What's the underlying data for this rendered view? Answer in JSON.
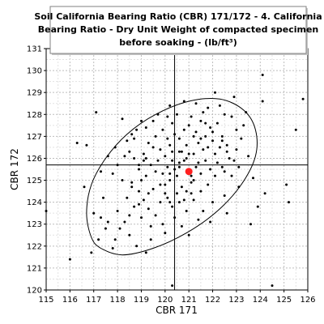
{
  "chart_data": {
    "type": "scatter",
    "title_lines": [
      "Soil California Bearing Ratio (CBR) 171/172 - 4. California",
      "Bearing Ratio - Dry Unit Weight of compacted specimen",
      "before soaking - (lb/ft³)"
    ],
    "xlabel": "CBR 171",
    "ylabel": "CBR 172",
    "xlim": [
      115,
      126
    ],
    "ylim": [
      120,
      131
    ],
    "x_ticks": [
      115,
      116,
      117,
      118,
      119,
      120,
      121,
      122,
      123,
      124,
      125,
      126
    ],
    "y_ticks": [
      120,
      121,
      122,
      123,
      124,
      125,
      126,
      127,
      128,
      129,
      130,
      131
    ],
    "grid": true,
    "reference_lines": {
      "x": 120.4,
      "y": 125.7
    },
    "highlight_point": {
      "x": 121.0,
      "y": 125.4,
      "color": "#ff2020"
    },
    "ellipse": {
      "comment_units": "data units",
      "center": [
        120.5,
        125.3
      ],
      "semi_major_x_extent": 4.6,
      "outline_points": [
        [
          116.9,
          122.4
        ],
        [
          117.3,
          121.9
        ],
        [
          118.2,
          121.6
        ],
        [
          119.5,
          121.9
        ],
        [
          120.9,
          122.6
        ],
        [
          122.2,
          123.6
        ],
        [
          123.2,
          124.8
        ],
        [
          123.8,
          126.1
        ],
        [
          123.8,
          127.3
        ],
        [
          123.3,
          128.2
        ],
        [
          122.3,
          128.7
        ],
        [
          121.0,
          128.6
        ],
        [
          119.6,
          128.0
        ],
        [
          118.4,
          127.1
        ],
        [
          117.5,
          126.0
        ],
        [
          116.9,
          124.8
        ],
        [
          116.7,
          123.5
        ]
      ]
    },
    "points": [
      [
        115.0,
        123.6
      ],
      [
        116.3,
        126.7
      ],
      [
        116.7,
        126.6
      ],
      [
        117.1,
        128.1
      ],
      [
        117.3,
        125.4
      ],
      [
        117.4,
        124.2
      ],
      [
        116.6,
        124.7
      ],
      [
        117.0,
        123.5
      ],
      [
        117.3,
        123.3
      ],
      [
        117.5,
        122.8
      ],
      [
        117.6,
        123.1
      ],
      [
        117.2,
        122.3
      ],
      [
        116.9,
        121.7
      ],
      [
        117.9,
        122.3
      ],
      [
        118.1,
        122.8
      ],
      [
        118.3,
        123.1
      ],
      [
        118.0,
        123.6
      ],
      [
        118.4,
        124.2
      ],
      [
        118.6,
        124.7
      ],
      [
        118.2,
        125.0
      ],
      [
        117.8,
        125.3
      ],
      [
        118.0,
        125.7
      ],
      [
        118.3,
        126.1
      ],
      [
        118.4,
        126.8
      ],
      [
        118.8,
        127.3
      ],
      [
        118.2,
        127.8
      ],
      [
        117.9,
        126.5
      ],
      [
        117.6,
        126.1
      ],
      [
        118.7,
        126.0
      ],
      [
        118.9,
        125.5
      ],
      [
        119.0,
        125.0
      ],
      [
        118.9,
        124.5
      ],
      [
        119.1,
        124.1
      ],
      [
        119.3,
        123.7
      ],
      [
        119.0,
        123.3
      ],
      [
        118.7,
        123.8
      ],
      [
        119.4,
        122.9
      ],
      [
        119.6,
        123.4
      ],
      [
        119.8,
        124.0
      ],
      [
        119.5,
        124.6
      ],
      [
        119.2,
        125.2
      ],
      [
        119.4,
        125.7
      ],
      [
        119.1,
        126.2
      ],
      [
        119.3,
        126.7
      ],
      [
        119.6,
        127.0
      ],
      [
        119.8,
        126.4
      ],
      [
        119.7,
        125.9
      ],
      [
        119.9,
        125.3
      ],
      [
        120.0,
        124.8
      ],
      [
        120.1,
        124.2
      ],
      [
        120.3,
        123.8
      ],
      [
        120.5,
        124.4
      ],
      [
        120.2,
        125.0
      ],
      [
        120.1,
        125.6
      ],
      [
        120.0,
        126.1
      ],
      [
        120.2,
        126.6
      ],
      [
        120.4,
        127.1
      ],
      [
        120.3,
        127.6
      ],
      [
        120.5,
        128.0
      ],
      [
        120.2,
        128.4
      ],
      [
        120.6,
        126.9
      ],
      [
        120.7,
        126.3
      ],
      [
        120.6,
        125.8
      ],
      [
        120.5,
        125.2
      ],
      [
        120.7,
        124.7
      ],
      [
        120.8,
        124.1
      ],
      [
        120.9,
        123.6
      ],
      [
        121.1,
        124.4
      ],
      [
        121.2,
        125.0
      ],
      [
        121.3,
        125.6
      ],
      [
        121.2,
        126.2
      ],
      [
        121.4,
        126.7
      ],
      [
        121.3,
        127.2
      ],
      [
        121.5,
        127.7
      ],
      [
        121.6,
        128.1
      ],
      [
        121.0,
        127.5
      ],
      [
        120.9,
        126.0
      ],
      [
        121.0,
        125.5
      ],
      [
        121.1,
        124.9
      ],
      [
        121.5,
        125.3
      ],
      [
        121.7,
        125.9
      ],
      [
        121.8,
        126.5
      ],
      [
        121.7,
        127.0
      ],
      [
        121.9,
        127.4
      ],
      [
        122.0,
        126.8
      ],
      [
        122.1,
        126.2
      ],
      [
        121.9,
        125.5
      ],
      [
        122.2,
        125.8
      ],
      [
        122.3,
        126.5
      ],
      [
        122.4,
        127.0
      ],
      [
        122.2,
        127.6
      ],
      [
        122.5,
        128.0
      ],
      [
        122.3,
        128.4
      ],
      [
        122.6,
        126.6
      ],
      [
        122.7,
        126.0
      ],
      [
        122.5,
        125.4
      ],
      [
        122.8,
        125.2
      ],
      [
        122.9,
        125.9
      ],
      [
        123.0,
        126.4
      ],
      [
        123.1,
        125.6
      ],
      [
        123.2,
        126.9
      ],
      [
        123.0,
        127.3
      ],
      [
        122.8,
        127.9
      ],
      [
        123.3,
        127.5
      ],
      [
        123.5,
        126.1
      ],
      [
        123.7,
        125.1
      ],
      [
        123.6,
        123.0
      ],
      [
        124.2,
        124.4
      ],
      [
        124.1,
        128.6
      ],
      [
        124.1,
        129.8
      ],
      [
        125.2,
        124.0
      ],
      [
        125.8,
        128.7
      ],
      [
        125.5,
        127.3
      ],
      [
        124.5,
        120.2
      ],
      [
        120.3,
        120.2
      ],
      [
        121.0,
        122.5
      ],
      [
        120.7,
        122.9
      ],
      [
        120.0,
        122.6
      ],
      [
        119.4,
        122.3
      ],
      [
        118.8,
        122.0
      ],
      [
        118.5,
        122.5
      ],
      [
        120.1,
        127.9
      ],
      [
        119.7,
        128.0
      ],
      [
        119.0,
        127.7
      ],
      [
        118.6,
        127.1
      ],
      [
        120.8,
        128.6
      ],
      [
        121.3,
        128.5
      ],
      [
        121.8,
        128.3
      ],
      [
        122.1,
        129.0
      ],
      [
        122.9,
        128.8
      ],
      [
        123.4,
        128.1
      ],
      [
        123.1,
        124.7
      ],
      [
        122.5,
        124.3
      ],
      [
        122.0,
        124.0
      ],
      [
        121.6,
        123.6
      ],
      [
        121.4,
        123.2
      ],
      [
        121.9,
        123.1
      ],
      [
        122.6,
        123.5
      ],
      [
        120.4,
        123.3
      ],
      [
        119.9,
        123.0
      ],
      [
        119.2,
        121.7
      ],
      [
        117.8,
        121.9
      ],
      [
        116.0,
        121.4
      ],
      [
        125.1,
        124.8
      ],
      [
        123.9,
        123.8
      ],
      [
        120.3,
        125.9
      ],
      [
        120.4,
        125.5
      ],
      [
        120.2,
        125.3
      ],
      [
        120.6,
        125.6
      ],
      [
        120.8,
        125.9
      ],
      [
        121.0,
        126.2
      ],
      [
        120.9,
        126.6
      ],
      [
        120.6,
        126.3
      ],
      [
        120.3,
        126.3
      ],
      [
        120.1,
        126.9
      ],
      [
        119.9,
        127.3
      ],
      [
        119.5,
        126.5
      ],
      [
        119.2,
        126.0
      ],
      [
        119.6,
        125.4
      ],
      [
        119.8,
        124.8
      ],
      [
        120.0,
        124.4
      ],
      [
        120.2,
        124.0
      ],
      [
        120.6,
        124.0
      ],
      [
        120.9,
        124.5
      ],
      [
        121.1,
        125.2
      ],
      [
        121.4,
        125.8
      ],
      [
        121.6,
        126.4
      ],
      [
        121.5,
        126.9
      ],
      [
        121.2,
        127.0
      ],
      [
        120.8,
        127.3
      ],
      [
        121.1,
        127.9
      ],
      [
        121.7,
        127.6
      ],
      [
        122.0,
        127.2
      ],
      [
        122.4,
        126.8
      ],
      [
        122.6,
        126.3
      ],
      [
        122.4,
        125.6
      ],
      [
        122.1,
        125.2
      ],
      [
        121.8,
        124.8
      ],
      [
        121.5,
        124.5
      ],
      [
        121.2,
        124.1
      ],
      [
        118.5,
        123.4
      ],
      [
        118.9,
        123.9
      ],
      [
        119.3,
        124.4
      ],
      [
        118.6,
        124.9
      ],
      [
        118.9,
        125.7
      ],
      [
        119.1,
        125.9
      ],
      [
        118.5,
        126.3
      ],
      [
        118.7,
        126.9
      ],
      [
        119.2,
        127.4
      ],
      [
        119.5,
        127.7
      ]
    ]
  }
}
